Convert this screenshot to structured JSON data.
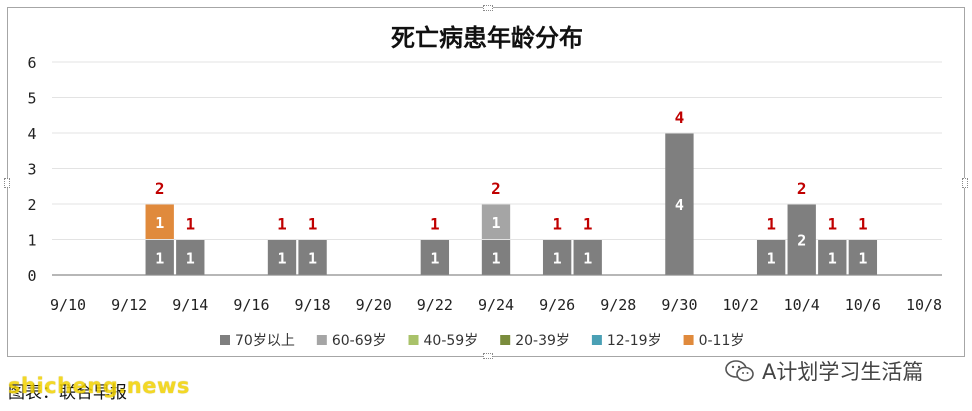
{
  "chart_data": {
    "type": "bar",
    "stacked": true,
    "title": "死亡病患年龄分布",
    "xlabel": "",
    "ylabel": "",
    "ylim": [
      0,
      6
    ],
    "yticks": [
      "0",
      "1",
      "2",
      "3",
      "4",
      "5",
      "6"
    ],
    "grid": true,
    "legend_position": "bottom",
    "x_ticks": [
      "9/10",
      "9/12",
      "9/14",
      "9/16",
      "9/18",
      "9/20",
      "9/22",
      "9/24",
      "9/26",
      "9/28",
      "9/30",
      "10/2",
      "10/4",
      "10/6",
      "10/8"
    ],
    "categories": [
      "9/10",
      "9/11",
      "9/12",
      "9/13",
      "9/14",
      "9/15",
      "9/16",
      "9/17",
      "9/18",
      "9/19",
      "9/20",
      "9/21",
      "9/22",
      "9/23",
      "9/24",
      "9/25",
      "9/26",
      "9/27",
      "9/28",
      "9/29",
      "9/30",
      "10/1",
      "10/2",
      "10/3",
      "10/4",
      "10/5",
      "10/6",
      "10/7",
      "10/8"
    ],
    "series": [
      {
        "name": "70岁以上",
        "color": "#7f7f7f",
        "values": [
          0,
          0,
          0,
          1,
          1,
          0,
          0,
          1,
          1,
          0,
          0,
          0,
          1,
          0,
          1,
          0,
          1,
          1,
          0,
          0,
          4,
          0,
          0,
          1,
          2,
          1,
          1,
          0,
          0
        ]
      },
      {
        "name": "60-69岁",
        "color": "#a5a5a5",
        "values": [
          0,
          0,
          0,
          0,
          0,
          0,
          0,
          0,
          0,
          0,
          0,
          0,
          0,
          0,
          1,
          0,
          0,
          0,
          0,
          0,
          0,
          0,
          0,
          0,
          0,
          0,
          0,
          0,
          0
        ]
      },
      {
        "name": "40-59岁",
        "color": "#a9c26a",
        "values": [
          0,
          0,
          0,
          0,
          0,
          0,
          0,
          0,
          0,
          0,
          0,
          0,
          0,
          0,
          0,
          0,
          0,
          0,
          0,
          0,
          0,
          0,
          0,
          0,
          0,
          0,
          0,
          0,
          0
        ]
      },
      {
        "name": "20-39岁",
        "color": "#7a8c3c",
        "values": [
          0,
          0,
          0,
          0,
          0,
          0,
          0,
          0,
          0,
          0,
          0,
          0,
          0,
          0,
          0,
          0,
          0,
          0,
          0,
          0,
          0,
          0,
          0,
          0,
          0,
          0,
          0,
          0,
          0
        ]
      },
      {
        "name": "12-19岁",
        "color": "#4aa0b5",
        "values": [
          0,
          0,
          0,
          0,
          0,
          0,
          0,
          0,
          0,
          0,
          0,
          0,
          0,
          0,
          0,
          0,
          0,
          0,
          0,
          0,
          0,
          0,
          0,
          0,
          0,
          0,
          0,
          0,
          0
        ]
      },
      {
        "name": "0-11岁",
        "color": "#e08a3c",
        "values": [
          0,
          0,
          0,
          1,
          0,
          0,
          0,
          0,
          0,
          0,
          0,
          0,
          0,
          0,
          0,
          0,
          0,
          0,
          0,
          0,
          0,
          0,
          0,
          0,
          0,
          0,
          0,
          0,
          0
        ]
      }
    ],
    "totals_color": "#c00000"
  },
  "caption": {
    "text": "图表：联合早报"
  },
  "watermarks": {
    "site": "shicheng.news",
    "account": "A计划学习生活篇",
    "account_icon": "wechat-icon"
  }
}
